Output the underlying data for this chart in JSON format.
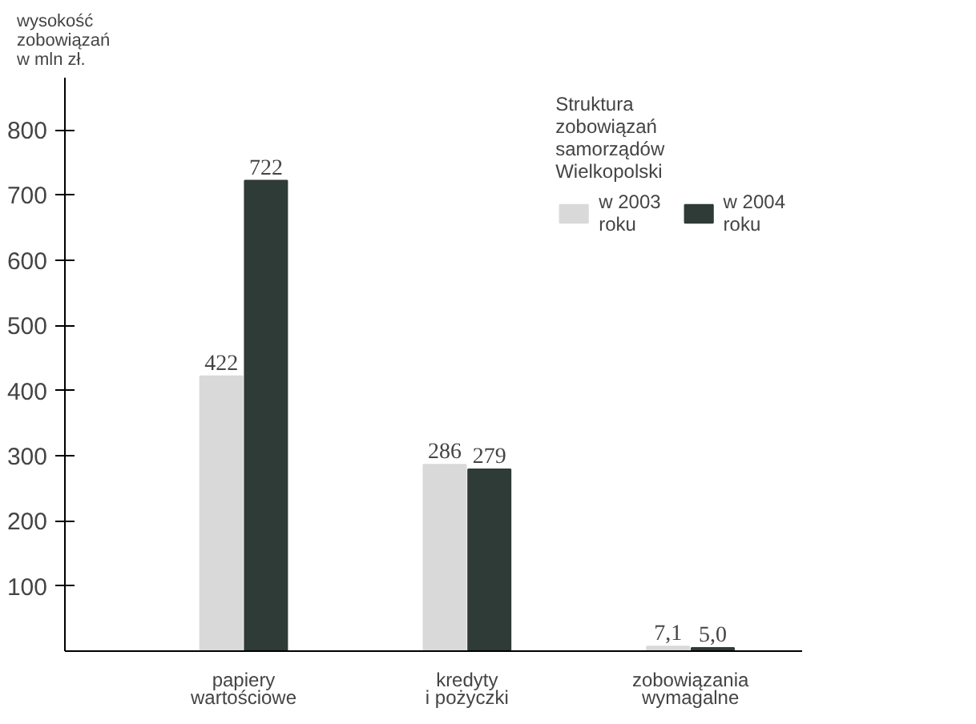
{
  "chart_data": {
    "type": "bar",
    "ylabel": "wysokość\nzobowiązań\nw mln zł.",
    "legend_title": "Struktura\nzobowiązań\nsamorządów\nWielkopolski",
    "categories": [
      "papiery\nwartościowe",
      "kredyty\ni pożyczki",
      "zobowiązania\nwymagalne"
    ],
    "series": [
      {
        "name": "w 2003\nroku",
        "color": "#d9d9d9",
        "values": [
          422,
          286,
          7.1
        ],
        "value_labels": [
          "422",
          "286",
          "7,1"
        ]
      },
      {
        "name": "w 2004\nroku",
        "color": "#2e3b36",
        "values": [
          722,
          279,
          5.0
        ],
        "value_labels": [
          "722",
          "279",
          "5,0"
        ]
      }
    ],
    "ylim": [
      0,
      880
    ],
    "yticks": [
      100,
      200,
      300,
      400,
      500,
      600,
      700,
      800
    ],
    "grid": false,
    "legend": "top right"
  }
}
